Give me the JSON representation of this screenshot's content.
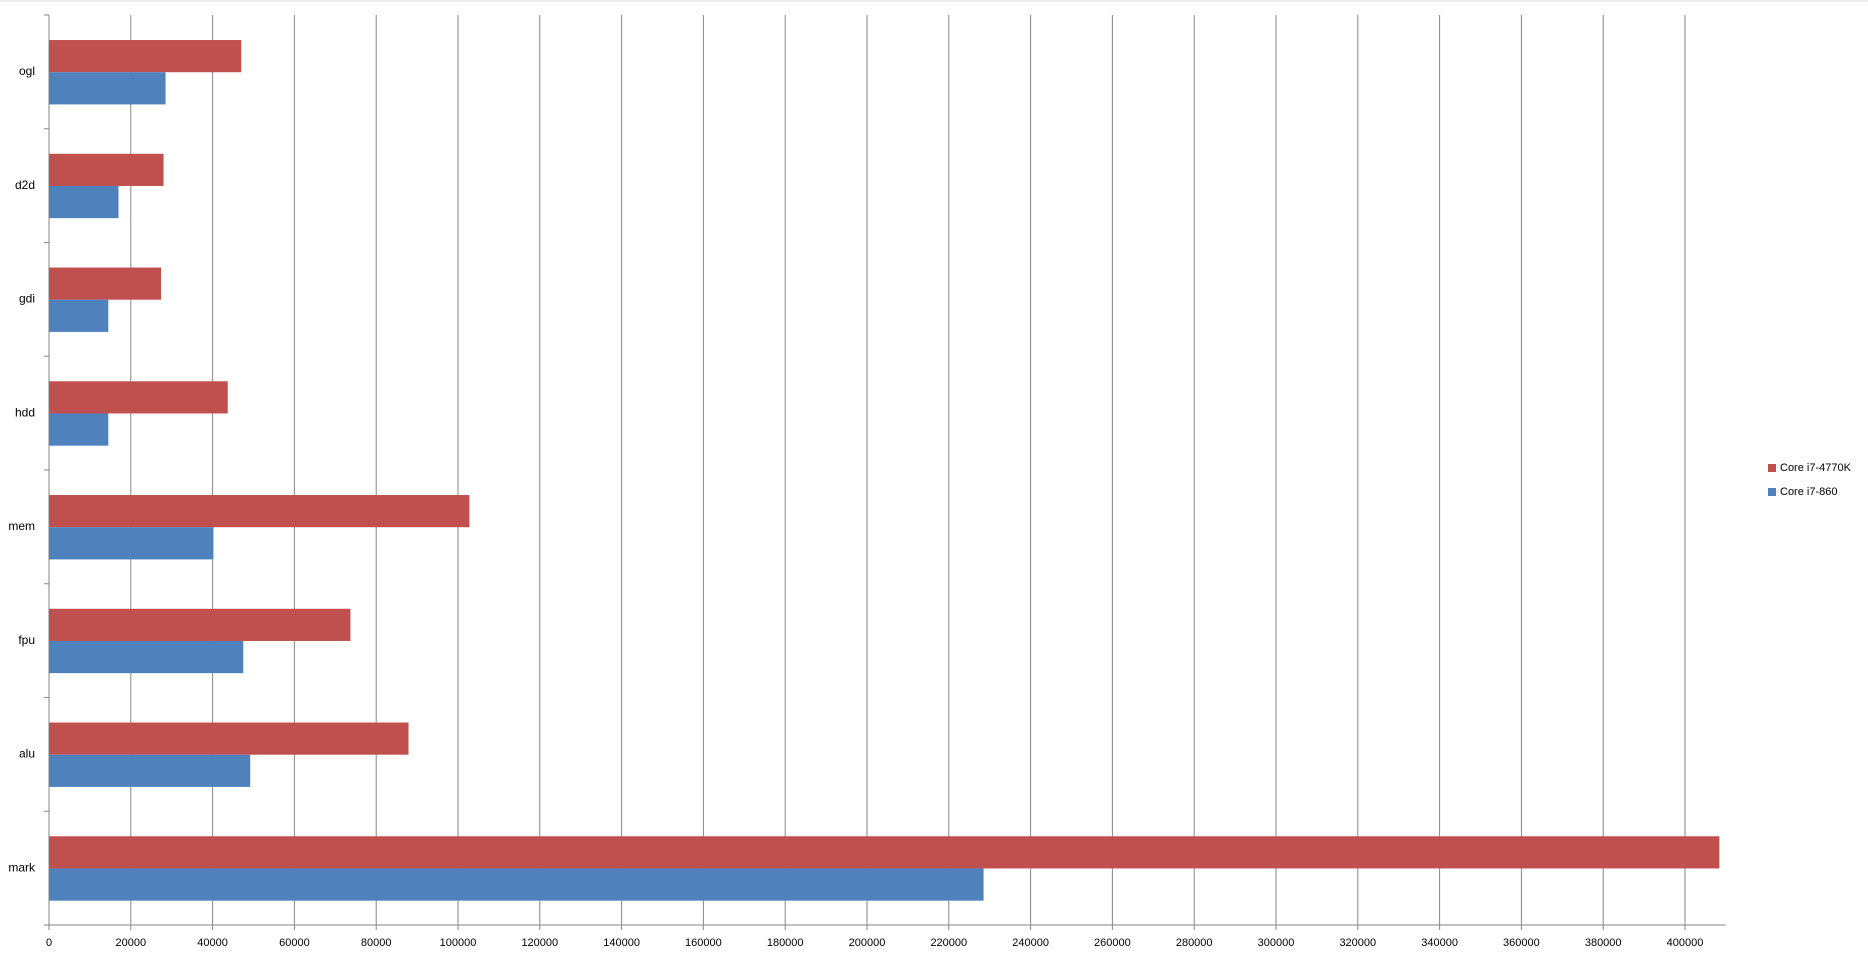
{
  "chart_data": {
    "type": "barh",
    "categories": [
      "ogl",
      "d2d",
      "gdi",
      "hdd",
      "mem",
      "fpu",
      "alu",
      "mark"
    ],
    "series": [
      {
        "name": "Core i7-4770K",
        "color": "#c0504d",
        "values": [
          47000,
          28000,
          27400,
          43700,
          102800,
          73700,
          87900,
          408400
        ]
      },
      {
        "name": "Core i7-860",
        "color": "#4f81bd",
        "values": [
          28500,
          17000,
          14500,
          14500,
          40200,
          47500,
          49200,
          228500
        ]
      }
    ],
    "xlim": [
      0,
      410000
    ],
    "xticks": [
      0,
      20000,
      40000,
      60000,
      80000,
      100000,
      120000,
      140000,
      160000,
      180000,
      200000,
      220000,
      240000,
      260000,
      280000,
      300000,
      320000,
      340000,
      360000,
      380000,
      400000
    ],
    "grid": true,
    "legend": "right"
  }
}
